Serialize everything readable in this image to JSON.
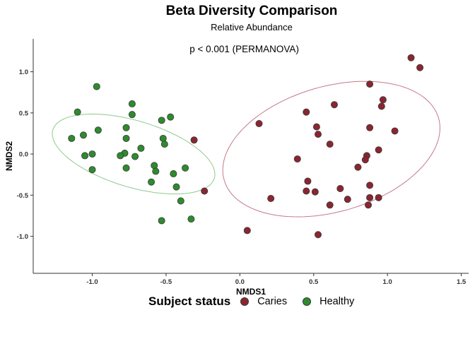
{
  "chart_data": {
    "type": "scatter",
    "title": "Beta Diversity Comparison",
    "subtitle": "Relative Abundance",
    "xlabel": "NMDS1",
    "ylabel": "NMDS2",
    "xlim": [
      -1.4,
      1.55
    ],
    "ylim": [
      -1.45,
      1.4
    ],
    "xticks": [
      "-1.0",
      "-0.5",
      "0.0",
      "0.5",
      "1.0",
      "1.5"
    ],
    "xtick_values": [
      -1.0,
      -0.5,
      0.0,
      0.5,
      1.0,
      1.5
    ],
    "yticks": [
      "-1.0",
      "-0.5",
      "0.0",
      "0.5",
      "1.0"
    ],
    "ytick_values": [
      -1.0,
      -0.5,
      0.0,
      0.5,
      1.0
    ],
    "grid": false,
    "annotation": "p < 0.001 (PERMANOVA)",
    "legend": {
      "title": "Subject status",
      "position": "bottom"
    },
    "series": [
      {
        "name": "Caries",
        "color": "#8b2530",
        "ellipse_color": "#c47a88",
        "points": [
          [
            1.16,
            1.17
          ],
          [
            1.22,
            1.05
          ],
          [
            0.88,
            0.85
          ],
          [
            0.97,
            0.66
          ],
          [
            0.64,
            0.6
          ],
          [
            0.96,
            0.58
          ],
          [
            0.45,
            0.51
          ],
          [
            0.13,
            0.37
          ],
          [
            0.52,
            0.33
          ],
          [
            0.88,
            0.32
          ],
          [
            1.05,
            0.28
          ],
          [
            0.53,
            0.24
          ],
          [
            0.61,
            0.12
          ],
          [
            0.94,
            0.05
          ],
          [
            0.86,
            -0.02
          ],
          [
            0.39,
            -0.06
          ],
          [
            0.85,
            -0.07
          ],
          [
            0.8,
            -0.16
          ],
          [
            0.46,
            -0.33
          ],
          [
            0.88,
            -0.38
          ],
          [
            0.68,
            -0.42
          ],
          [
            0.45,
            -0.45
          ],
          [
            0.51,
            -0.46
          ],
          [
            0.21,
            -0.54
          ],
          [
            0.88,
            -0.53
          ],
          [
            0.94,
            -0.53
          ],
          [
            0.73,
            -0.55
          ],
          [
            0.61,
            -0.62
          ],
          [
            0.87,
            -0.62
          ],
          [
            0.05,
            -0.93
          ],
          [
            0.53,
            -0.98
          ],
          [
            -0.31,
            0.17
          ],
          [
            -0.24,
            -0.45
          ]
        ]
      },
      {
        "name": "Healthy",
        "color": "#2e8b2e",
        "ellipse_color": "#8fc98f",
        "points": [
          [
            -0.97,
            0.82
          ],
          [
            -1.1,
            0.51
          ],
          [
            -0.73,
            0.61
          ],
          [
            -0.73,
            0.48
          ],
          [
            -0.47,
            0.45
          ],
          [
            -0.53,
            0.41
          ],
          [
            -0.96,
            0.29
          ],
          [
            -0.77,
            0.32
          ],
          [
            -1.06,
            0.23
          ],
          [
            -1.14,
            0.19
          ],
          [
            -0.77,
            0.19
          ],
          [
            -0.52,
            0.19
          ],
          [
            -0.51,
            0.12
          ],
          [
            -0.67,
            0.07
          ],
          [
            -0.78,
            0.01
          ],
          [
            -0.81,
            -0.02
          ],
          [
            -1.0,
            0.0
          ],
          [
            -1.05,
            -0.02
          ],
          [
            -0.71,
            -0.03
          ],
          [
            -0.58,
            -0.14
          ],
          [
            -1.0,
            -0.19
          ],
          [
            -0.77,
            -0.17
          ],
          [
            -0.57,
            -0.21
          ],
          [
            -0.37,
            -0.17
          ],
          [
            -0.45,
            -0.24
          ],
          [
            -0.6,
            -0.34
          ],
          [
            -0.43,
            -0.4
          ],
          [
            -0.4,
            -0.57
          ],
          [
            -0.53,
            -0.81
          ],
          [
            -0.33,
            -0.79
          ]
        ]
      }
    ],
    "ellipses": [
      {
        "group": "Caries",
        "cx": 0.62,
        "cy": 0.06,
        "rx": 0.9,
        "ry": 0.64,
        "rotation_deg": 55
      },
      {
        "group": "Healthy",
        "cx": -0.72,
        "cy": 0.0,
        "rx": 0.64,
        "ry": 0.36,
        "rotation_deg": -38
      }
    ]
  }
}
